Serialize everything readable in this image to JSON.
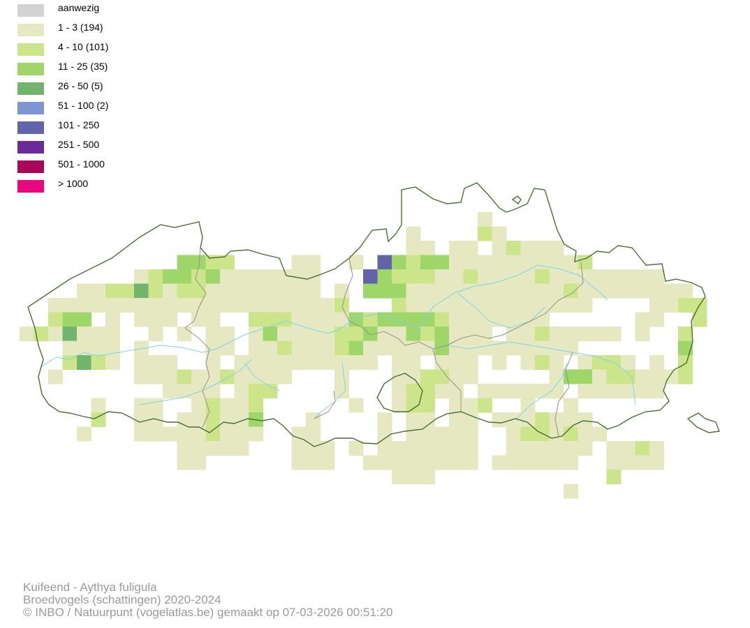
{
  "legend": {
    "items": [
      {
        "label": "aanwezig",
        "color": "#d3d3d3"
      },
      {
        "label": "1 - 3 (194)",
        "color": "#e6e8c1"
      },
      {
        "label": "4 - 10 (101)",
        "color": "#cde58a"
      },
      {
        "label": "11 - 25 (35)",
        "color": "#9ed66a"
      },
      {
        "label": "26 - 50 (5)",
        "color": "#72b36e"
      },
      {
        "label": "51 - 100 (2)",
        "color": "#8095d4"
      },
      {
        "label": "101 - 250",
        "color": "#6164a8"
      },
      {
        "label": "251 - 500",
        "color": "#6a2b99"
      },
      {
        "label": "501 - 1000",
        "color": "#a8075a"
      },
      {
        "label": "> 1000",
        "color": "#e8077e"
      }
    ]
  },
  "map": {
    "border_color": "#4a6e34",
    "province_border_color": "#9a8f8a",
    "river_color": "#7fd3e6"
  },
  "footer": {
    "species": "Kuifeend - Aythya fuligula",
    "subtitle": "Broedvogels (schattingen) 2020-2024",
    "credit": "© INBO / Natuurpunt (vogelatlas.be) gemaakt op 07-03-2026 00:51:20"
  }
}
